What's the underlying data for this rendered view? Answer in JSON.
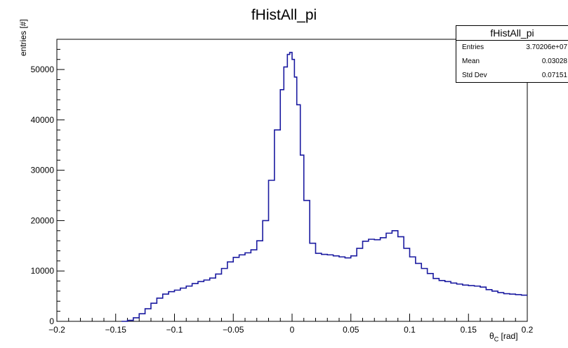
{
  "chart_data": {
    "type": "line",
    "title": "fHistAll_pi",
    "xlabel_main": "θ",
    "xlabel_sub": "C",
    "xlabel_unit": "[rad]",
    "ylabel": "entries [#]",
    "xlim": [
      -0.2,
      0.2
    ],
    "ylim": [
      0,
      56000
    ],
    "xticks": [
      -0.2,
      -0.15,
      -0.1,
      -0.05,
      0,
      0.05,
      0.1,
      0.15,
      0.2
    ],
    "xtick_labels": [
      "−0.2",
      "−0.15",
      "−0.1",
      "−0.05",
      "0",
      "0.05",
      "0.1",
      "0.15",
      "0.2"
    ],
    "yticks": [
      0,
      10000,
      20000,
      30000,
      40000,
      50000
    ],
    "ytick_labels": [
      "0",
      "10000",
      "20000",
      "30000",
      "40000",
      "50000"
    ],
    "grid": false,
    "color": "#1a1aa0",
    "series": [
      {
        "x": [
          -0.145,
          -0.14,
          -0.135,
          -0.13,
          -0.125,
          -0.12,
          -0.115,
          -0.11,
          -0.105,
          -0.1,
          -0.095,
          -0.09,
          -0.085,
          -0.08,
          -0.075,
          -0.07,
          -0.065,
          -0.06,
          -0.055,
          -0.05,
          -0.045,
          -0.04,
          -0.035,
          -0.03,
          -0.025,
          -0.02,
          -0.015,
          -0.01,
          -0.007,
          -0.004,
          -0.002,
          0,
          0.002,
          0.004,
          0.007,
          0.01,
          0.015,
          0.02,
          0.025,
          0.03,
          0.035,
          0.04,
          0.045,
          0.05,
          0.055,
          0.06,
          0.065,
          0.07,
          0.075,
          0.08,
          0.085,
          0.09,
          0.095,
          0.1,
          0.105,
          0.11,
          0.115,
          0.12,
          0.125,
          0.13,
          0.135,
          0.14,
          0.145,
          0.15,
          0.155,
          0.16,
          0.165,
          0.17,
          0.175,
          0.18,
          0.185,
          0.19,
          0.195,
          0.2
        ],
        "y": [
          0,
          200,
          700,
          1500,
          2500,
          3600,
          4600,
          5400,
          5900,
          6200,
          6600,
          7000,
          7500,
          7900,
          8200,
          8600,
          9400,
          10500,
          11800,
          12700,
          13200,
          13600,
          14200,
          16000,
          20000,
          28000,
          38000,
          46000,
          50500,
          53000,
          53400,
          52000,
          48500,
          43000,
          33000,
          24000,
          15500,
          13500,
          13300,
          13200,
          13000,
          12800,
          12600,
          13000,
          14500,
          15900,
          16300,
          16200,
          16600,
          17500,
          18000,
          16800,
          14500,
          12800,
          11500,
          10500,
          9500,
          8500,
          8100,
          7900,
          7600,
          7400,
          7200,
          7100,
          7000,
          6800,
          6300,
          6000,
          5700,
          5500,
          5400,
          5300,
          5200,
          5200
        ]
      }
    ]
  },
  "stats": {
    "title": "fHistAll_pi",
    "rows": [
      {
        "key": "Entries",
        "value": "3.70206e+07"
      },
      {
        "key": "Mean",
        "value": "0.03028"
      },
      {
        "key": "Std Dev",
        "value": "0.07151"
      }
    ]
  }
}
